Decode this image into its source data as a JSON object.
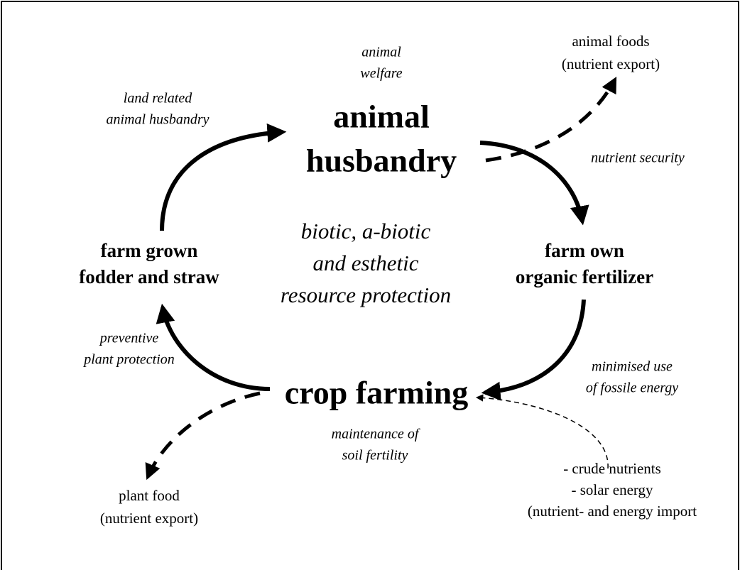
{
  "nodes": [
    {
      "lines": [
        "animal",
        "husbandry"
      ]
    },
    {
      "lines": [
        "farm own",
        "organic fertilizer"
      ]
    },
    {
      "lines": [
        "crop farming"
      ]
    },
    {
      "lines": [
        "farm grown",
        "fodder and straw"
      ]
    }
  ],
  "center": {
    "lines": [
      "biotic, a-biotic",
      "and esthetic",
      "resource protection"
    ]
  },
  "notes": [
    {
      "lines": [
        "animal",
        "welfare"
      ]
    },
    {
      "lines": [
        "land related",
        "animal husbandry"
      ]
    },
    {
      "lines": [
        "nutrient security"
      ]
    },
    {
      "lines": [
        "minimised use",
        "of  fossile energy"
      ]
    },
    {
      "lines": [
        "maintenance of",
        "soil  fertility"
      ]
    },
    {
      "lines": [
        "preventive",
        "plant protection"
      ]
    }
  ],
  "outputs": [
    {
      "lines": [
        "animal foods",
        "(nutrient export)"
      ]
    },
    {
      "lines": [
        "plant food",
        "(nutrient export)"
      ]
    },
    {
      "lines": [
        "- crude nutrients",
        "- solar energy",
        "(nutrient- and energy import"
      ]
    }
  ]
}
